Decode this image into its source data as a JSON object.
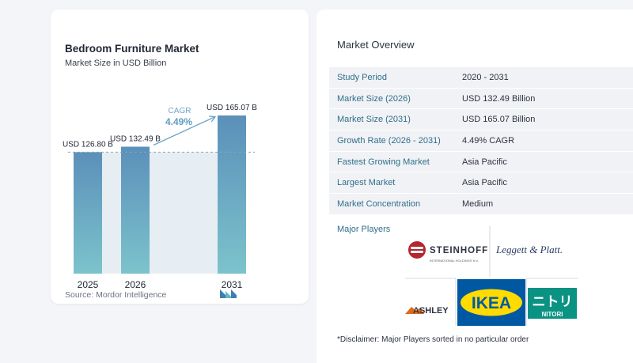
{
  "chart_data": {
    "type": "bar",
    "title": "Bedroom Furniture Market",
    "subtitle": "Market Size in USD Billion",
    "categories": [
      "2025",
      "2026",
      "2031"
    ],
    "values": [
      126.8,
      132.49,
      165.07
    ],
    "value_labels": [
      "USD 126.80 B",
      "USD 132.49 B",
      "USD 165.07 B"
    ],
    "xlabel": "",
    "ylabel": "",
    "ylim": [
      0,
      175
    ],
    "grid": false,
    "cagr_label": "CAGR",
    "cagr_value": "4.49%",
    "bar_color_top": "#5b90ba",
    "bar_color_bottom": "#7cc3cc",
    "band_color": "#e6eef4"
  },
  "source": "Source:  Mordor Intelligence",
  "overview": {
    "title": "Market Overview",
    "rows": [
      {
        "label": "Study Period",
        "value": "2020 - 2031"
      },
      {
        "label": "Market Size (2026)",
        "value": "USD 132.49 Billion"
      },
      {
        "label": "Market Size (2031)",
        "value": "USD 165.07 Billion"
      },
      {
        "label": "Growth Rate (2026 - 2031)",
        "value": "4.49% CAGR"
      },
      {
        "label": "Fastest Growing Market",
        "value": "Asia Pacific"
      },
      {
        "label": "Largest Market",
        "value": "Asia Pacific"
      },
      {
        "label": "Market Concentration",
        "value": "Medium"
      }
    ]
  },
  "players": {
    "title": "Major Players",
    "logos": [
      {
        "name": "STEINHOFF",
        "sub": "INTERNATIONAL HOLDINGS N.V."
      },
      {
        "name": "Leggett & Platt."
      },
      {
        "name": "ASHLEY"
      },
      {
        "name": "IKEA"
      },
      {
        "name": "NITORI",
        "glyph": "ニトリ"
      }
    ]
  },
  "disclaimer": "*Disclaimer: Major Players sorted in no particular order"
}
